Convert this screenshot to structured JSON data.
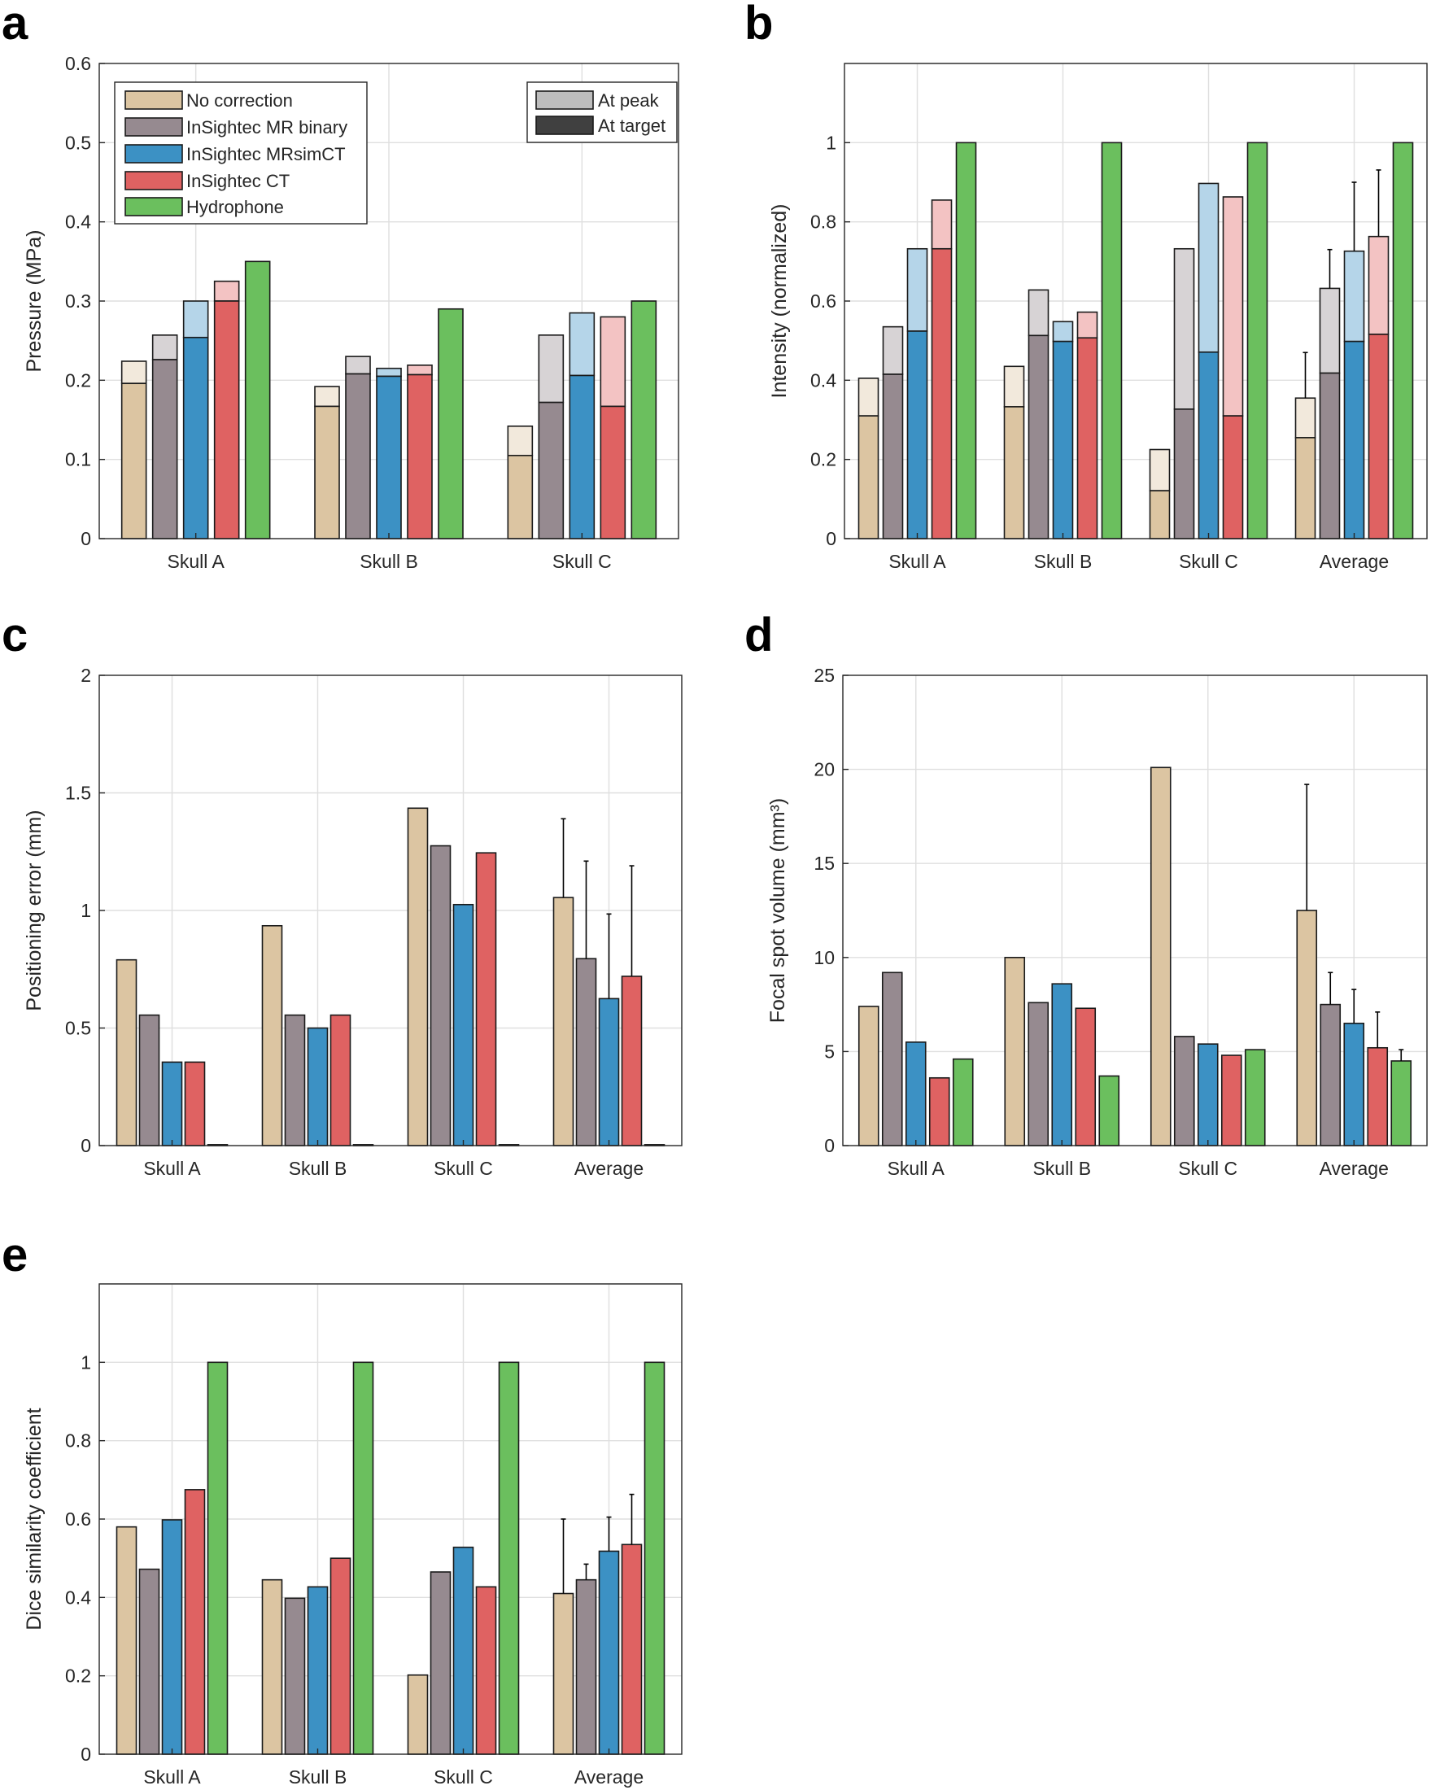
{
  "legend": {
    "series": [
      {
        "label": "No correction",
        "color": "#dcc5a2"
      },
      {
        "label": "InSightec MR binary",
        "color": "#968a90"
      },
      {
        "label": "InSightec MRsimCT",
        "color": "#3c91c4"
      },
      {
        "label": "InSightec CT",
        "color": "#df6262"
      },
      {
        "label": "Hydrophone",
        "color": "#6bbf5e"
      }
    ],
    "types": [
      {
        "label": "At peak",
        "color": "#bdbdbd"
      },
      {
        "label": "At target",
        "color": "#404040"
      }
    ]
  },
  "chart_data": [
    {
      "panel": "a",
      "type": "bar",
      "ylabel": "Pressure (MPa)",
      "categories": [
        "Skull A",
        "Skull B",
        "Skull C"
      ],
      "ylim": [
        0,
        0.6
      ],
      "yticks": [
        "0",
        "0.1",
        "0.2",
        "0.3",
        "0.4",
        "0.5",
        "0.6"
      ],
      "series": [
        {
          "name": "No correction",
          "peak": [
            0.224,
            0.192,
            0.142
          ],
          "target": [
            0.196,
            0.167,
            0.105
          ]
        },
        {
          "name": "InSightec MR binary",
          "peak": [
            0.257,
            0.23,
            0.257
          ],
          "target": [
            0.226,
            0.208,
            0.172
          ]
        },
        {
          "name": "InSightec MRsimCT",
          "peak": [
            0.3,
            0.215,
            0.285
          ],
          "target": [
            0.254,
            0.205,
            0.206
          ]
        },
        {
          "name": "InSightec CT",
          "peak": [
            0.325,
            0.219,
            0.28
          ],
          "target": [
            0.3,
            0.207,
            0.167
          ]
        },
        {
          "name": "Hydrophone",
          "peak": [
            0.35,
            0.29,
            0.3
          ],
          "target": [
            0.35,
            0.29,
            0.3
          ]
        }
      ]
    },
    {
      "panel": "b",
      "type": "bar",
      "ylabel": "Intensity (normalized)",
      "categories": [
        "Skull A",
        "Skull B",
        "Skull C",
        "Average"
      ],
      "ylim": [
        0,
        1.2
      ],
      "yticks": [
        "0",
        "0.2",
        "0.4",
        "0.6",
        "0.8",
        "1"
      ],
      "series": [
        {
          "name": "No correction",
          "peak": [
            0.405,
            0.435,
            0.225,
            0.355
          ],
          "target": [
            0.31,
            0.333,
            0.121,
            0.255
          ],
          "err_peak": [
            null,
            null,
            null,
            0.115
          ]
        },
        {
          "name": "InSightec MR binary",
          "peak": [
            0.535,
            0.628,
            0.732,
            0.632
          ],
          "target": [
            0.415,
            0.513,
            0.327,
            0.418
          ],
          "err_peak": [
            null,
            null,
            null,
            0.098
          ]
        },
        {
          "name": "InSightec MRsimCT",
          "peak": [
            0.732,
            0.548,
            0.897,
            0.726
          ],
          "target": [
            0.524,
            0.498,
            0.471,
            0.498
          ],
          "err_peak": [
            null,
            null,
            null,
            0.174
          ]
        },
        {
          "name": "InSightec CT",
          "peak": [
            0.855,
            0.572,
            0.863,
            0.763
          ],
          "target": [
            0.732,
            0.507,
            0.31,
            0.516
          ],
          "err_peak": [
            null,
            null,
            null,
            0.168
          ]
        },
        {
          "name": "Hydrophone",
          "peak": [
            1,
            1,
            1,
            1
          ],
          "target": [
            1,
            1,
            1,
            1
          ],
          "err_peak": [
            null,
            null,
            null,
            null
          ]
        }
      ]
    },
    {
      "panel": "c",
      "type": "bar",
      "ylabel": "Positioning error (mm)",
      "categories": [
        "Skull A",
        "Skull B",
        "Skull C",
        "Average"
      ],
      "ylim": [
        0,
        2
      ],
      "yticks": [
        "0",
        "0.5",
        "1",
        "1.5",
        "2"
      ],
      "series": [
        {
          "name": "No correction",
          "values": [
            0.79,
            0.935,
            1.435,
            1.055
          ],
          "err": [
            null,
            null,
            null,
            0.335
          ]
        },
        {
          "name": "InSightec MR binary",
          "values": [
            0.555,
            0.555,
            1.275,
            0.795
          ],
          "err": [
            null,
            null,
            null,
            0.415
          ]
        },
        {
          "name": "InSightec MRsimCT",
          "values": [
            0.355,
            0.5,
            1.025,
            0.625
          ],
          "err": [
            null,
            null,
            null,
            0.36
          ]
        },
        {
          "name": "InSightec CT",
          "values": [
            0.355,
            0.555,
            1.245,
            0.72
          ],
          "err": [
            null,
            null,
            null,
            0.47
          ]
        },
        {
          "name": "Hydrophone",
          "values": [
            0.004,
            0.004,
            0.004,
            0.004
          ],
          "err": [
            null,
            null,
            null,
            null
          ]
        }
      ]
    },
    {
      "panel": "d",
      "type": "bar",
      "ylabel": "Focal spot volume (mm³)",
      "categories": [
        "Skull A",
        "Skull B",
        "Skull C",
        "Average"
      ],
      "ylim": [
        0,
        25
      ],
      "yticks": [
        "0",
        "5",
        "10",
        "15",
        "20",
        "25"
      ],
      "series": [
        {
          "name": "No correction",
          "values": [
            7.4,
            10,
            20.1,
            12.5
          ],
          "err": [
            null,
            null,
            null,
            6.7
          ]
        },
        {
          "name": "InSightec MR binary",
          "values": [
            9.2,
            7.6,
            5.8,
            7.5
          ],
          "err": [
            null,
            null,
            null,
            1.7
          ]
        },
        {
          "name": "InSightec MRsimCT",
          "values": [
            5.5,
            8.6,
            5.4,
            6.5
          ],
          "err": [
            null,
            null,
            null,
            1.8
          ]
        },
        {
          "name": "InSightec CT",
          "values": [
            3.6,
            7.3,
            4.8,
            5.2
          ],
          "err": [
            null,
            null,
            null,
            1.9
          ]
        },
        {
          "name": "Hydrophone",
          "values": [
            4.6,
            3.7,
            5.1,
            4.5
          ],
          "err": [
            null,
            null,
            null,
            0.6
          ]
        }
      ]
    },
    {
      "panel": "e",
      "type": "bar",
      "ylabel": "Dice similarity coefficient",
      "categories": [
        "Skull A",
        "Skull B",
        "Skull C",
        "Average"
      ],
      "ylim": [
        0,
        1.2
      ],
      "yticks": [
        "0",
        "0.2",
        "0.4",
        "0.6",
        "0.8",
        "1"
      ],
      "series": [
        {
          "name": "No correction",
          "values": [
            0.58,
            0.445,
            0.202,
            0.41
          ],
          "err": [
            null,
            null,
            null,
            0.19
          ]
        },
        {
          "name": "InSightec MR binary",
          "values": [
            0.472,
            0.398,
            0.465,
            0.445
          ],
          "err": [
            null,
            null,
            null,
            0.04
          ]
        },
        {
          "name": "InSightec MRsimCT",
          "values": [
            0.598,
            0.427,
            0.528,
            0.518
          ],
          "err": [
            null,
            null,
            null,
            0.087
          ]
        },
        {
          "name": "InSightec CT",
          "values": [
            0.675,
            0.5,
            0.427,
            0.535
          ],
          "err": [
            null,
            null,
            null,
            0.128
          ]
        },
        {
          "name": "Hydrophone",
          "values": [
            1,
            1,
            1,
            1
          ],
          "err": [
            null,
            null,
            null,
            null
          ]
        }
      ]
    }
  ]
}
